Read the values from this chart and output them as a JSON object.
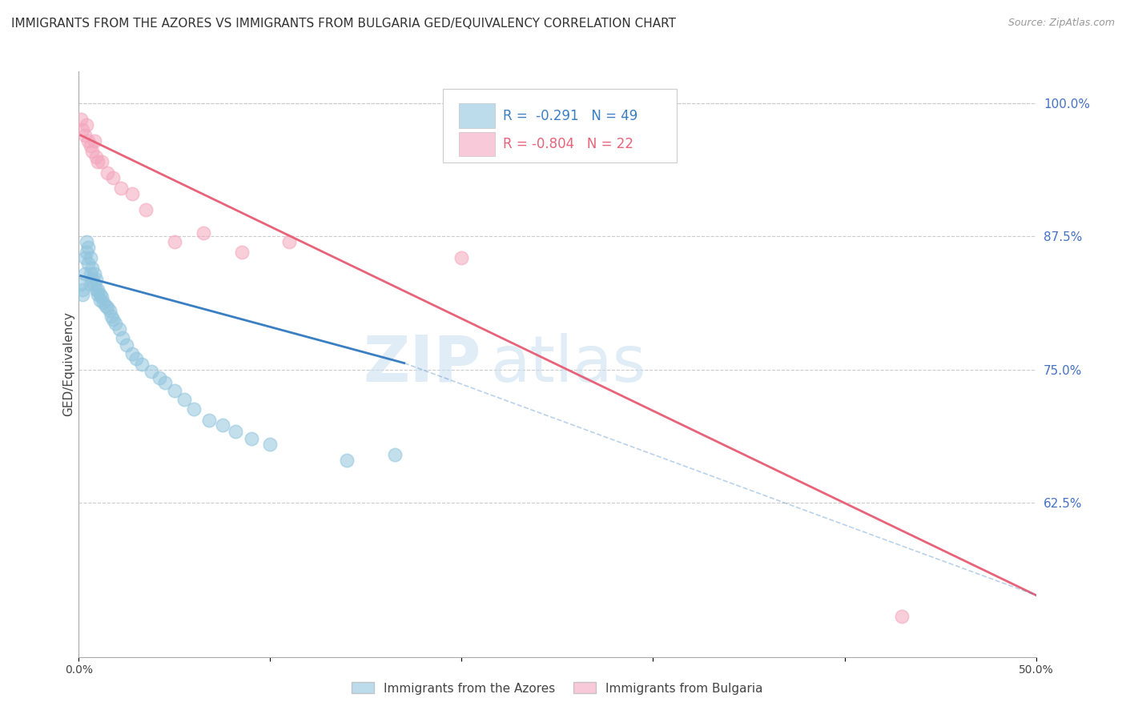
{
  "title": "IMMIGRANTS FROM THE AZORES VS IMMIGRANTS FROM BULGARIA GED/EQUIVALENCY CORRELATION CHART",
  "source": "Source: ZipAtlas.com",
  "ylabel_left": "GED/Equivalency",
  "xlim": [
    0.0,
    0.5
  ],
  "ylim": [
    0.48,
    1.03
  ],
  "xticks": [
    0.0,
    0.1,
    0.2,
    0.3,
    0.4,
    0.5
  ],
  "xticklabels": [
    "0.0%",
    "",
    "",
    "",
    "",
    "50.0%"
  ],
  "yticks_right": [
    1.0,
    0.875,
    0.75,
    0.625
  ],
  "yticklabels_right": [
    "100.0%",
    "87.5%",
    "75.0%",
    "62.5%"
  ],
  "legend_blue_rval": "-0.291",
  "legend_blue_nval": "49",
  "legend_pink_rval": "-0.804",
  "legend_pink_nval": "22",
  "legend_label_blue": "Immigrants from the Azores",
  "legend_label_pink": "Immigrants from Bulgaria",
  "blue_color": "#92c5de",
  "pink_color": "#f4a6be",
  "blue_line_color": "#3a7fc1",
  "pink_line_color": "#e8637a",
  "background_color": "#ffffff",
  "grid_color": "#cccccc",
  "watermark_zip": "ZIP",
  "watermark_atlas": "atlas",
  "title_fontsize": 11,
  "axis_label_fontsize": 11,
  "tick_fontsize": 10,
  "blue_dots_x": [
    0.001,
    0.002,
    0.002,
    0.003,
    0.003,
    0.004,
    0.004,
    0.005,
    0.005,
    0.006,
    0.006,
    0.006,
    0.007,
    0.007,
    0.008,
    0.008,
    0.009,
    0.009,
    0.01,
    0.01,
    0.011,
    0.011,
    0.012,
    0.013,
    0.014,
    0.015,
    0.016,
    0.017,
    0.018,
    0.019,
    0.021,
    0.023,
    0.025,
    0.028,
    0.03,
    0.033,
    0.038,
    0.042,
    0.045,
    0.05,
    0.055,
    0.06,
    0.068,
    0.075,
    0.082,
    0.09,
    0.1,
    0.14,
    0.165
  ],
  "blue_dots_y": [
    0.83,
    0.82,
    0.825,
    0.855,
    0.84,
    0.87,
    0.86,
    0.85,
    0.865,
    0.855,
    0.84,
    0.83,
    0.845,
    0.835,
    0.84,
    0.83,
    0.835,
    0.825,
    0.825,
    0.82,
    0.82,
    0.815,
    0.818,
    0.813,
    0.81,
    0.808,
    0.805,
    0.8,
    0.797,
    0.793,
    0.788,
    0.78,
    0.773,
    0.765,
    0.76,
    0.755,
    0.748,
    0.742,
    0.738,
    0.73,
    0.722,
    0.713,
    0.702,
    0.698,
    0.692,
    0.685,
    0.68,
    0.665,
    0.67
  ],
  "pink_dots_x": [
    0.001,
    0.002,
    0.003,
    0.004,
    0.005,
    0.006,
    0.007,
    0.008,
    0.009,
    0.01,
    0.012,
    0.015,
    0.018,
    0.022,
    0.028,
    0.035,
    0.05,
    0.065,
    0.085,
    0.11,
    0.2,
    0.43
  ],
  "pink_dots_y": [
    0.985,
    0.975,
    0.97,
    0.98,
    0.965,
    0.96,
    0.955,
    0.965,
    0.95,
    0.945,
    0.945,
    0.935,
    0.93,
    0.92,
    0.915,
    0.9,
    0.87,
    0.878,
    0.86,
    0.87,
    0.855,
    0.518
  ],
  "blue_line_x": [
    0.001,
    0.17
  ],
  "blue_line_y": [
    0.838,
    0.756
  ],
  "pink_line_x": [
    0.001,
    0.5
  ],
  "pink_line_y": [
    0.97,
    0.538
  ],
  "dashed_line_x": [
    0.17,
    0.5
  ],
  "dashed_line_y": [
    0.756,
    0.538
  ]
}
